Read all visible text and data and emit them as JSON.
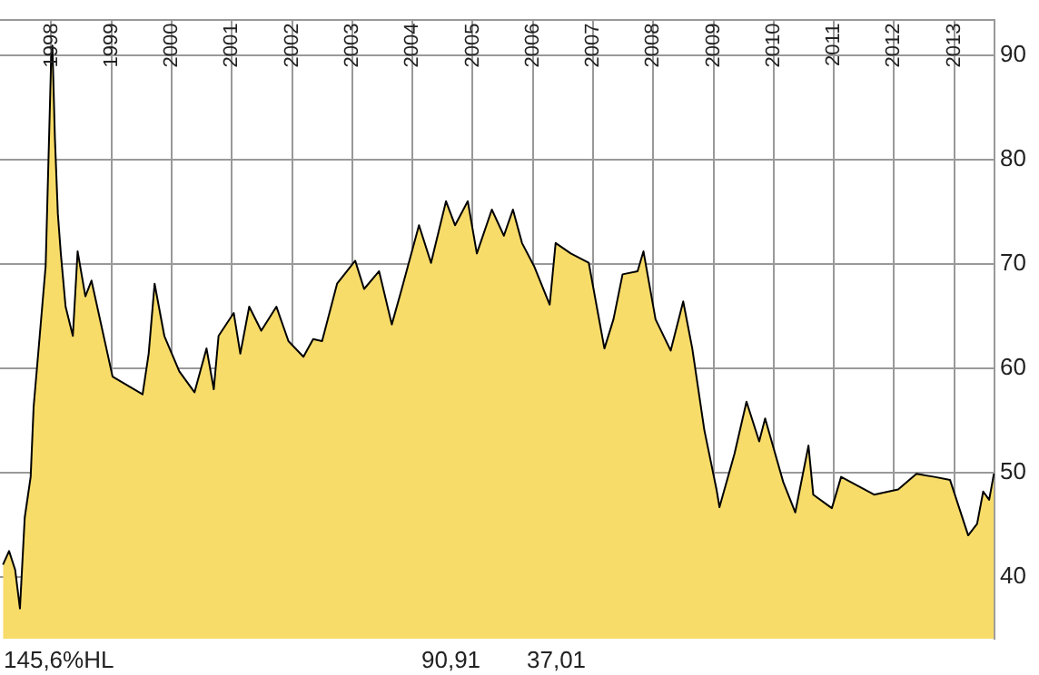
{
  "chart_data": {
    "type": "area",
    "xlim": [
      "1997-02-24",
      "2013-09-02"
    ],
    "ylim": [
      34.1,
      93.4
    ],
    "xticks": [
      "1998",
      "1999",
      "2000",
      "2001",
      "2002",
      "2003",
      "2004",
      "2005",
      "2006",
      "2007",
      "2008",
      "2009",
      "2010",
      "2011",
      "2012",
      "2013"
    ],
    "yticks": [
      40,
      50,
      60,
      70,
      80,
      90
    ],
    "grid": true,
    "legend": false,
    "annotations": [
      "145,6%HL",
      "90,91",
      "37,01"
    ],
    "series": [
      {
        "color": "#f8dc6a",
        "x": [
          "1997-03-14",
          "1997-04-20",
          "1997-05-27",
          "1997-06-25",
          "1997-07-24",
          "1997-08-29",
          "1997-09-16",
          "1997-10-23",
          "1997-11-28",
          "1998-01-01",
          "1998-01-08",
          "1998-01-23",
          "1998-02-10",
          "1998-02-28",
          "1998-03-29",
          "1998-05-12",
          "1998-06-10",
          "1998-07-27",
          "1998-09-02",
          "1999-01-08",
          "1999-07-09",
          "1999-08-15",
          "1999-09-20",
          "1999-11-18",
          "2000-02-17",
          "2000-05-19",
          "2000-07-31",
          "2000-09-13",
          "2000-10-12",
          "2001-01-12",
          "2001-02-21",
          "2001-04-16",
          "2001-06-28",
          "2001-09-28",
          "2001-12-10",
          "2002-03-11",
          "2002-05-09",
          "2002-07-02",
          "2002-10-01",
          "2003-01-19",
          "2003-03-14",
          "2003-06-13",
          "2003-08-29",
          "2003-10-23",
          "2004-02-10",
          "2004-04-23",
          "2004-07-23",
          "2004-09-16",
          "2004-12-02",
          "2005-01-26",
          "2005-04-27",
          "2005-07-09",
          "2005-09-02",
          "2005-10-27",
          "2006-01-08",
          "2006-04-13",
          "2006-05-19",
          "2006-08-19",
          "2006-12-06",
          "2007-03-11",
          "2007-05-05",
          "2007-06-29",
          "2007-09-28",
          "2007-11-03",
          "2008-01-15",
          "2008-04-16",
          "2008-07-01",
          "2008-08-25",
          "2008-11-06",
          "2009-01-19",
          "2009-02-06",
          "2009-05-08",
          "2009-07-20",
          "2009-10-05",
          "2009-11-10",
          "2010-02-28",
          "2010-05-12",
          "2010-07-31",
          "2010-08-29",
          "2010-12-20",
          "2011-02-14",
          "2011-09-02",
          "2012-01-26",
          "2012-05-16",
          "2012-09-02",
          "2012-12-06",
          "2013-03-26",
          "2013-05-19",
          "2013-06-25",
          "2013-07-31",
          "2013-08-29"
        ],
        "values": [
          41.2,
          42.5,
          40.7,
          37.0,
          45.7,
          49.6,
          56.3,
          63.1,
          69.8,
          90.0,
          90.9,
          82.1,
          74.8,
          71.0,
          65.9,
          63.1,
          71.2,
          66.9,
          68.4,
          59.2,
          57.5,
          61.4,
          68.1,
          63.1,
          59.7,
          57.7,
          61.9,
          58.0,
          63.1,
          65.3,
          61.4,
          65.9,
          63.6,
          65.9,
          62.6,
          61.1,
          62.8,
          62.6,
          68.1,
          70.3,
          67.6,
          69.3,
          64.2,
          67.3,
          73.7,
          70.1,
          76.0,
          73.7,
          76.0,
          71.0,
          75.2,
          72.7,
          75.2,
          72.0,
          69.8,
          66.1,
          72.0,
          71.0,
          70.1,
          61.9,
          64.7,
          69.0,
          69.3,
          71.2,
          64.7,
          61.7,
          66.4,
          61.9,
          54.1,
          48.4,
          46.7,
          51.8,
          56.8,
          53.0,
          55.2,
          49.1,
          46.2,
          52.6,
          47.9,
          46.6,
          49.6,
          47.9,
          48.4,
          49.9,
          49.6,
          49.3,
          44.0,
          45.1,
          48.2,
          47.4,
          49.9
        ]
      }
    ]
  }
}
